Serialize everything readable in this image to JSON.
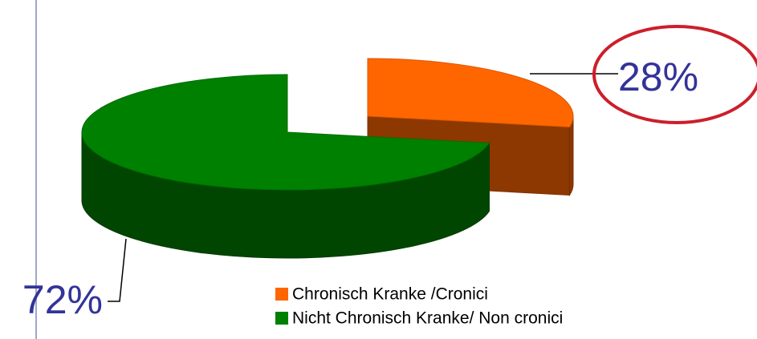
{
  "chart_data": {
    "type": "pie",
    "categories": [
      "Chronisch Kranke /Cronici",
      "Nicht Chronisch Kranke/ Non cronici"
    ],
    "values": [
      28,
      72
    ],
    "value_labels": [
      "28%",
      "72%"
    ],
    "colors": [
      "#ff6600",
      "#008000"
    ],
    "legend": "bottom"
  }
}
